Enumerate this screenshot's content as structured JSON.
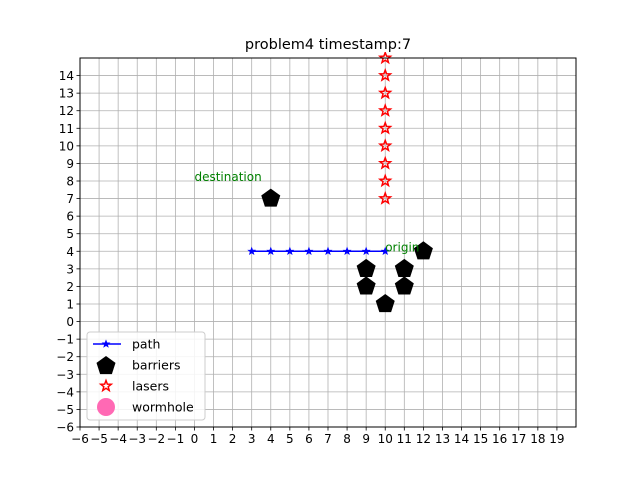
{
  "chart_data": {
    "type": "scatter",
    "title": "problem4 timestamp:7",
    "xlabel": "",
    "ylabel": "",
    "xlim": [
      -6,
      20
    ],
    "ylim": [
      -6,
      15
    ],
    "x_ticks": [
      -6,
      -5,
      -4,
      -3,
      -2,
      -1,
      0,
      1,
      2,
      3,
      4,
      5,
      6,
      7,
      8,
      9,
      10,
      11,
      12,
      13,
      14,
      15,
      16,
      17,
      18,
      19
    ],
    "y_ticks": [
      -6,
      -5,
      -4,
      -3,
      -2,
      -1,
      0,
      1,
      2,
      3,
      4,
      5,
      6,
      7,
      8,
      9,
      10,
      11,
      12,
      13,
      14
    ],
    "grid": true,
    "legend_position": "lower-left",
    "series": [
      {
        "name": "path",
        "style": "line-star",
        "color": "#0000ff",
        "points": [
          [
            3,
            4
          ],
          [
            4,
            4
          ],
          [
            5,
            4
          ],
          [
            6,
            4
          ],
          [
            7,
            4
          ],
          [
            8,
            4
          ],
          [
            9,
            4
          ],
          [
            10,
            4
          ]
        ]
      },
      {
        "name": "barriers",
        "style": "pentagon",
        "color": "#000000",
        "points": [
          [
            4,
            7
          ],
          [
            12,
            4
          ],
          [
            9,
            3
          ],
          [
            11,
            3
          ],
          [
            9,
            2
          ],
          [
            11,
            2
          ],
          [
            10,
            1
          ]
        ]
      },
      {
        "name": "lasers",
        "style": "star",
        "color": "#ff0000",
        "points": [
          [
            10,
            7
          ],
          [
            10,
            8
          ],
          [
            10,
            9
          ],
          [
            10,
            10
          ],
          [
            10,
            11
          ],
          [
            10,
            12
          ],
          [
            10,
            13
          ],
          [
            10,
            14
          ],
          [
            10,
            15
          ]
        ]
      },
      {
        "name": "wormhole",
        "style": "circle",
        "color": "#ff69b4",
        "points": []
      }
    ],
    "annotations": [
      {
        "text": "destination",
        "x": 0,
        "y": 8,
        "color": "#008000"
      },
      {
        "text": "origin",
        "x": 10,
        "y": 4,
        "color": "#008000"
      }
    ]
  }
}
